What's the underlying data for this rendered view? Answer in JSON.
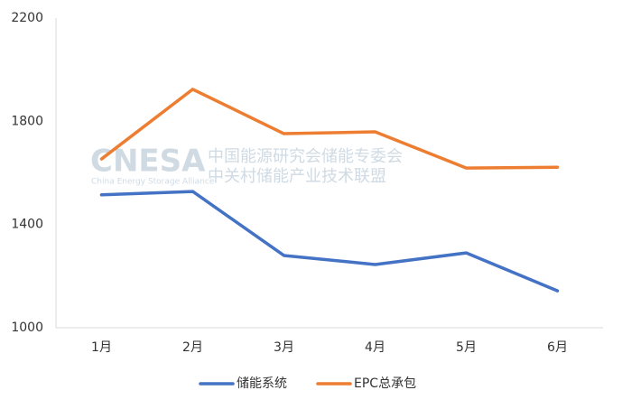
{
  "chart_data": {
    "type": "line",
    "categories": [
      "1月",
      "2月",
      "3月",
      "4月",
      "5月",
      "6月"
    ],
    "series": [
      {
        "name": "储能系统",
        "color": "#4472c4",
        "values": [
          1515,
          1528,
          1280,
          1245,
          1290,
          1143
        ]
      },
      {
        "name": "EPC总承包",
        "color": "#ed7d31",
        "values": [
          1654,
          1924,
          1752,
          1759,
          1619,
          1622
        ]
      }
    ],
    "ylim": [
      1000,
      2200
    ],
    "yticks": [
      1000,
      1400,
      1800,
      2200
    ],
    "grid": false,
    "legend": "bottom"
  },
  "watermark": {
    "logo": "CNESA",
    "subtitle": "China Energy Storage Alliance",
    "line1": "中国能源研究会储能专委会",
    "line2": "中关村储能产业技术联盟"
  }
}
